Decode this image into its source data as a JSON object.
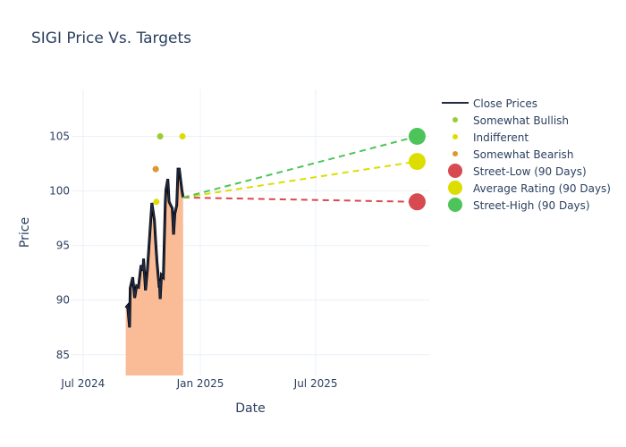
{
  "title": "SIGI Price Vs. Targets",
  "chart_data": {
    "type": "line",
    "title": "SIGI Price Vs. Targets",
    "xlabel": "Date",
    "ylabel": "Price",
    "xlim": [
      "2024-06-13",
      "2025-12-26"
    ],
    "ylim": [
      83.1,
      109.3
    ],
    "grid": true,
    "legend_position": "right",
    "x_ticks": [
      {
        "date": "2024-07-01",
        "label": "Jul 2024"
      },
      {
        "date": "2025-01-01",
        "label": "Jan 2025"
      },
      {
        "date": "2025-07-01",
        "label": "Jul 2025"
      }
    ],
    "y_ticks": [
      85,
      90,
      95,
      100,
      105
    ],
    "colors": {
      "close": "#1f2a44",
      "fill": "#f9bc96",
      "bullish": "#9acd32",
      "indifferent": "#dddd00",
      "bearish": "#e0962c",
      "low": "#d64a50",
      "avg": "#dddd00",
      "high": "#4dc45a",
      "grid": "#ebf0f8"
    },
    "close_prices": {
      "name": "Close Prices",
      "points": [
        [
          "2024-09-06",
          89.3
        ],
        [
          "2024-09-09",
          89.5
        ],
        [
          "2024-09-12",
          87.5
        ],
        [
          "2024-09-13",
          91.1
        ],
        [
          "2024-09-17",
          92.1
        ],
        [
          "2024-09-20",
          90.2
        ],
        [
          "2024-09-23",
          91.3
        ],
        [
          "2024-09-26",
          91.2
        ],
        [
          "2024-09-30",
          93.2
        ],
        [
          "2024-10-03",
          92.7
        ],
        [
          "2024-10-04",
          93.8
        ],
        [
          "2024-10-07",
          90.9
        ],
        [
          "2024-10-10",
          92.8
        ],
        [
          "2024-10-17",
          98.9
        ],
        [
          "2024-10-21",
          97.3
        ],
        [
          "2024-10-23",
          95.3
        ],
        [
          "2024-10-25",
          93.5
        ],
        [
          "2024-10-28",
          91.5
        ],
        [
          "2024-10-29",
          91.6
        ],
        [
          "2024-10-30",
          90.1
        ],
        [
          "2024-11-01",
          92.3
        ],
        [
          "2024-11-04",
          92.1
        ],
        [
          "2024-11-07",
          98.9
        ],
        [
          "2024-11-08",
          100.1
        ],
        [
          "2024-11-11",
          101.1
        ],
        [
          "2024-11-13",
          99.0
        ],
        [
          "2024-11-18",
          98.4
        ],
        [
          "2024-11-20",
          96.0
        ],
        [
          "2024-11-22",
          97.9
        ],
        [
          "2024-11-25",
          98.7
        ],
        [
          "2024-11-27",
          102.0
        ],
        [
          "2024-11-29",
          102.0
        ],
        [
          "2024-12-03",
          100.1
        ],
        [
          "2024-12-05",
          99.4
        ]
      ]
    },
    "ratings": [
      {
        "name": "Somewhat Bullish",
        "points": [
          [
            "2024-10-30",
            105
          ]
        ]
      },
      {
        "name": "Indifferent",
        "points": [
          [
            "2024-10-24",
            99
          ],
          [
            "2024-12-04",
            105
          ]
        ]
      },
      {
        "name": "Somewhat Bearish",
        "points": [
          [
            "2024-10-23",
            102
          ]
        ]
      }
    ],
    "targets": [
      {
        "name": "Street-Low (90 Days)",
        "start": [
          "2024-12-05",
          99.4
        ],
        "end": [
          "2025-12-07",
          99
        ]
      },
      {
        "name": "Average Rating (90 Days)",
        "start": [
          "2024-12-05",
          99.4
        ],
        "end": [
          "2025-12-07",
          102.7
        ]
      },
      {
        "name": "Street-High (90 Days)",
        "start": [
          "2024-12-05",
          99.4
        ],
        "end": [
          "2025-12-07",
          105
        ]
      }
    ]
  }
}
